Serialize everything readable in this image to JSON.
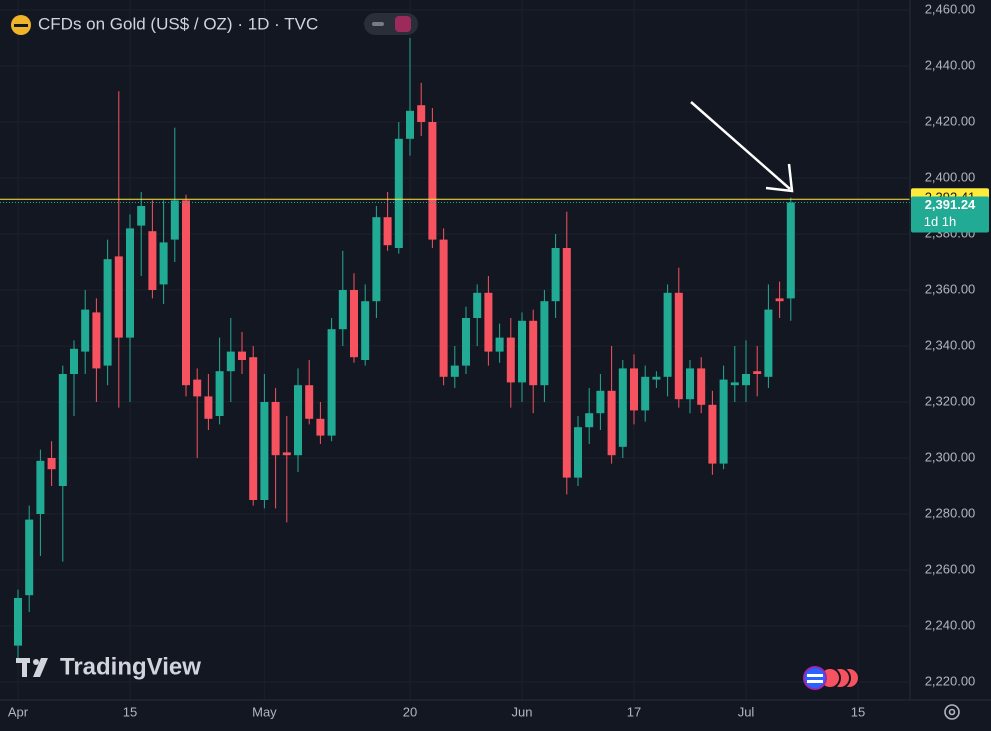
{
  "header": {
    "title": "CFDs on Gold (US$ / OZ) · 1D · TVC"
  },
  "watermark": "TradingView",
  "chart_data": {
    "type": "candlestick",
    "categories": [
      "Apr",
      null,
      null,
      null,
      null,
      null,
      null,
      null,
      null,
      null,
      "15",
      null,
      null,
      null,
      null,
      null,
      null,
      null,
      null,
      null,
      null,
      null,
      "May",
      null,
      null,
      null,
      null,
      null,
      null,
      null,
      null,
      null,
      null,
      null,
      null,
      "20",
      null,
      null,
      null,
      null,
      null,
      null,
      null,
      null,
      null,
      "Jun",
      null,
      null,
      null,
      null,
      null,
      null,
      null,
      null,
      null,
      "17",
      null,
      null,
      null,
      null,
      null,
      null,
      null,
      null,
      null,
      "Jul",
      null,
      null,
      null,
      null,
      null,
      null,
      null,
      null,
      null,
      "15"
    ],
    "open": [
      2233,
      2251,
      2280,
      2300,
      2290,
      2330,
      2338,
      2352,
      2333,
      2372,
      2343,
      2383,
      2381,
      2362,
      2378,
      2392,
      2328,
      2322,
      2315,
      2331,
      2338,
      2336,
      2285,
      2320,
      2302,
      2301,
      2326,
      2314,
      2308,
      2346,
      2360,
      2335,
      2356,
      2386,
      2375,
      2414,
      2426,
      2420,
      2378,
      2329,
      2333,
      2350,
      2359,
      2338,
      2343,
      2327,
      2349,
      2326,
      2356,
      2375,
      2293,
      2311,
      2316,
      2324,
      2304,
      2332,
      2317,
      2328,
      2329,
      2359,
      2321,
      2332,
      2319,
      2298,
      2326,
      2326,
      2331,
      2329,
      2357,
      2357,
      null,
      null,
      null,
      null,
      null,
      null
    ],
    "high": [
      2253,
      2283,
      2303,
      2306,
      2333,
      2342,
      2360,
      2357,
      2378,
      2431,
      2387,
      2395,
      2392,
      2392,
      2418,
      2394,
      2332,
      2330,
      2343,
      2350,
      2345,
      2340,
      2330,
      2325,
      2315,
      2332,
      2335,
      2320,
      2350,
      2374,
      2366,
      2362,
      2390,
      2395,
      2420,
      2450,
      2434,
      2425,
      2382,
      2340,
      2354,
      2362,
      2365,
      2348,
      2350,
      2352,
      2353,
      2360,
      2380,
      2388,
      2315,
      2325,
      2330,
      2340,
      2335,
      2337,
      2333,
      2331,
      2362,
      2368,
      2335,
      2336,
      2324,
      2333,
      2340,
      2342,
      2340,
      2362,
      2363,
      2393,
      null,
      null,
      null,
      null,
      null,
      null
    ],
    "low": [
      2228,
      2245,
      2265,
      2290,
      2263,
      2315,
      2330,
      2320,
      2326,
      2318,
      2320,
      2365,
      2357,
      2355,
      2370,
      2322,
      2300,
      2310,
      2312,
      2320,
      2330,
      2283,
      2282,
      2282,
      2277,
      2295,
      2312,
      2305,
      2306,
      2340,
      2334,
      2333,
      2350,
      2374,
      2373,
      2408,
      2415,
      2375,
      2326,
      2325,
      2330,
      2340,
      2333,
      2334,
      2318,
      2320,
      2316,
      2320,
      2350,
      2287,
      2290,
      2305,
      2310,
      2298,
      2300,
      2312,
      2313,
      2325,
      2322,
      2318,
      2316,
      2316,
      2294,
      2296,
      2320,
      2320,
      2322,
      2325,
      2350,
      2349,
      null,
      null,
      null,
      null,
      null,
      null
    ],
    "close": [
      2250,
      2278,
      2299,
      2296,
      2330,
      2339,
      2353,
      2332,
      2371,
      2343,
      2382,
      2390,
      2360,
      2377,
      2392,
      2326,
      2322,
      2314,
      2331,
      2338,
      2335,
      2285,
      2320,
      2301,
      2301,
      2326,
      2314,
      2308,
      2346,
      2360,
      2336,
      2356,
      2386,
      2376,
      2414,
      2424,
      2420,
      2378,
      2329,
      2333,
      2350,
      2359,
      2338,
      2343,
      2327,
      2349,
      2326,
      2356,
      2375,
      2293,
      2311,
      2316,
      2324,
      2301,
      2332,
      2317,
      2329,
      2329,
      2359,
      2321,
      2332,
      2319,
      2298,
      2328,
      2327,
      2330,
      2330,
      2353,
      2356,
      2391.24,
      null,
      null,
      null,
      null,
      null,
      null
    ],
    "up_color": "#22ab94",
    "down_color": "#f7525f",
    "ylim": [
      2220,
      2460
    ],
    "yticks": [
      {
        "value": 2220,
        "label": "2,220.00"
      },
      {
        "value": 2240,
        "label": "2,240.00"
      },
      {
        "value": 2260,
        "label": "2,260.00"
      },
      {
        "value": 2280,
        "label": "2,280.00"
      },
      {
        "value": 2300,
        "label": "2,300.00"
      },
      {
        "value": 2320,
        "label": "2,320.00"
      },
      {
        "value": 2340,
        "label": "2,340.00"
      },
      {
        "value": 2360,
        "label": "2,360.00"
      },
      {
        "value": 2380,
        "label": "2,380.00"
      },
      {
        "value": 2400,
        "label": "2,400.00"
      },
      {
        "value": 2420,
        "label": "2,420.00"
      },
      {
        "value": 2440,
        "label": "2,440.00"
      },
      {
        "value": 2460,
        "label": "2,460.00"
      }
    ],
    "grid": true,
    "price_line": {
      "value": 2392.41,
      "label": "2,392.41",
      "color": "#ffeb3b"
    },
    "last_price": {
      "value": 2391.24,
      "label": "2,391.24",
      "countdown": "1d 1h",
      "color": "#22ab94"
    }
  }
}
